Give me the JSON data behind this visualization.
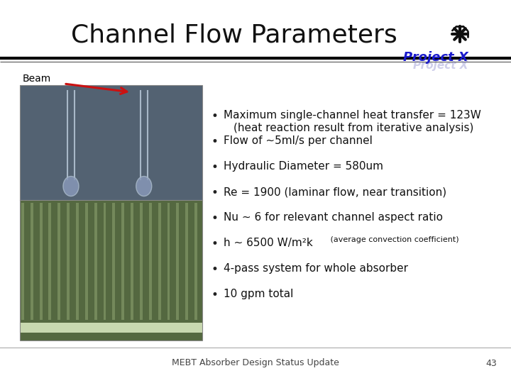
{
  "title": "Channel Flow Parameters",
  "title_fontsize": 26,
  "title_color": "#111111",
  "background_color": "#ffffff",
  "header_line_color": "#000000",
  "beam_label": "Beam",
  "beam_label_fontsize": 10,
  "footer_text": "MEBT Absorber Design Status Update",
  "footer_page": "43",
  "footer_fontsize": 9,
  "project_x_text": "Project X",
  "bullet_points": [
    {
      "main": "Maximum single-channel heat transfer = 123W",
      "sub": "(heat reaction result from iterative analysis)",
      "small": null
    },
    {
      "main": "Flow of ∼5ml/s per channel",
      "sub": null,
      "small": null
    },
    {
      "main": "Hydraulic Diameter = 580um",
      "sub": null,
      "small": null
    },
    {
      "main": "Re = 1900 (laminar flow, near transition)",
      "sub": null,
      "small": null
    },
    {
      "main": "Nu ∼ 6 for relevant channel aspect ratio",
      "sub": null,
      "small": null
    },
    {
      "main": "h ∼ 6500 W/m²k",
      "sub": null,
      "small": " (average convection coefficient)"
    },
    {
      "main": "4-pass system for whole absorber",
      "sub": null,
      "small": null
    },
    {
      "main": "10 gpm total",
      "sub": null,
      "small": null
    }
  ],
  "bullet_fontsize": 11,
  "sub_fontsize": 11,
  "small_fontsize": 8,
  "panel_top_color": "#536272",
  "panel_bottom_color": "#546840",
  "panel_stripe_color": "#7a9060",
  "panel_light_color": "#c8d8b0",
  "tube_color": "#a8b8c8",
  "tube_fill_color": "#8898b8",
  "arrow_color": "#cc1111"
}
